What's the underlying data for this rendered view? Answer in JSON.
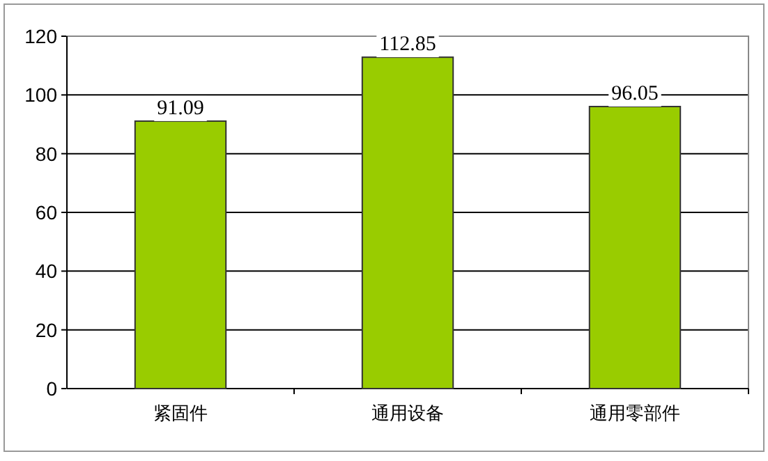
{
  "chart_data": {
    "type": "bar",
    "categories": [
      "紧固件",
      "通用设备",
      "通用零部件"
    ],
    "values": [
      91.09,
      112.85,
      96.05
    ],
    "color": "#99cc00",
    "ylim": [
      0,
      120
    ],
    "yticks": [
      0,
      20,
      40,
      60,
      80,
      100,
      120
    ],
    "grid": "y",
    "data_labels": true
  }
}
